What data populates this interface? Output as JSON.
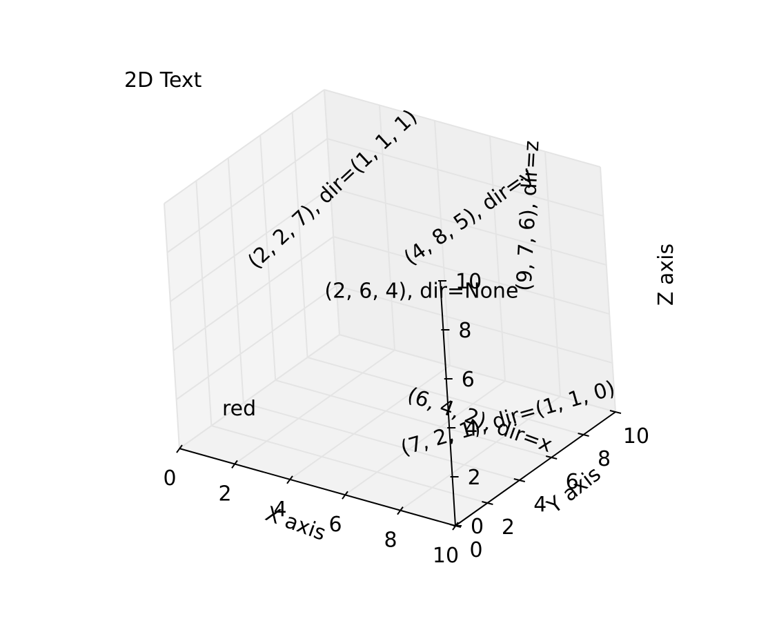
{
  "chart_data": {
    "type": "text3d",
    "title_2d": "2D Text",
    "xlabel": "X axis",
    "ylabel": "Y axis",
    "zlabel": "Z axis",
    "xlim": [
      0,
      10
    ],
    "ylim": [
      0,
      10
    ],
    "zlim": [
      0,
      10
    ],
    "xticks": [
      "0",
      "2",
      "4",
      "6",
      "8",
      "10"
    ],
    "yticks": [
      "0",
      "2",
      "4",
      "6",
      "8",
      "10"
    ],
    "zticks": [
      "0",
      "2",
      "4",
      "6",
      "8",
      "10"
    ],
    "grid": true,
    "annotations": [
      {
        "x": 2,
        "y": 6,
        "z": 4,
        "text": "(2, 6, 4), dir=None",
        "dir": "none"
      },
      {
        "x": 4,
        "y": 8,
        "z": 5,
        "text": "(4, 8, 5), dir=y",
        "dir": "y"
      },
      {
        "x": 2,
        "y": 2,
        "z": 7,
        "text": "(2, 2, 7), dir=(1, 1, 1)",
        "dir": "111"
      },
      {
        "x": 9,
        "y": 7,
        "z": 6,
        "text": "(9, 7, 6), dir=z",
        "dir": "z"
      },
      {
        "x": 6,
        "y": 4,
        "z": 2,
        "text": "(6, 4, 2), dir=x",
        "dir": "x"
      },
      {
        "x": 7,
        "y": 2,
        "z": 1,
        "text": "(7, 2, 1), dir=(1, 1, 0)",
        "dir": "110"
      }
    ],
    "red_text": "red",
    "red_color": "#ff0000"
  }
}
